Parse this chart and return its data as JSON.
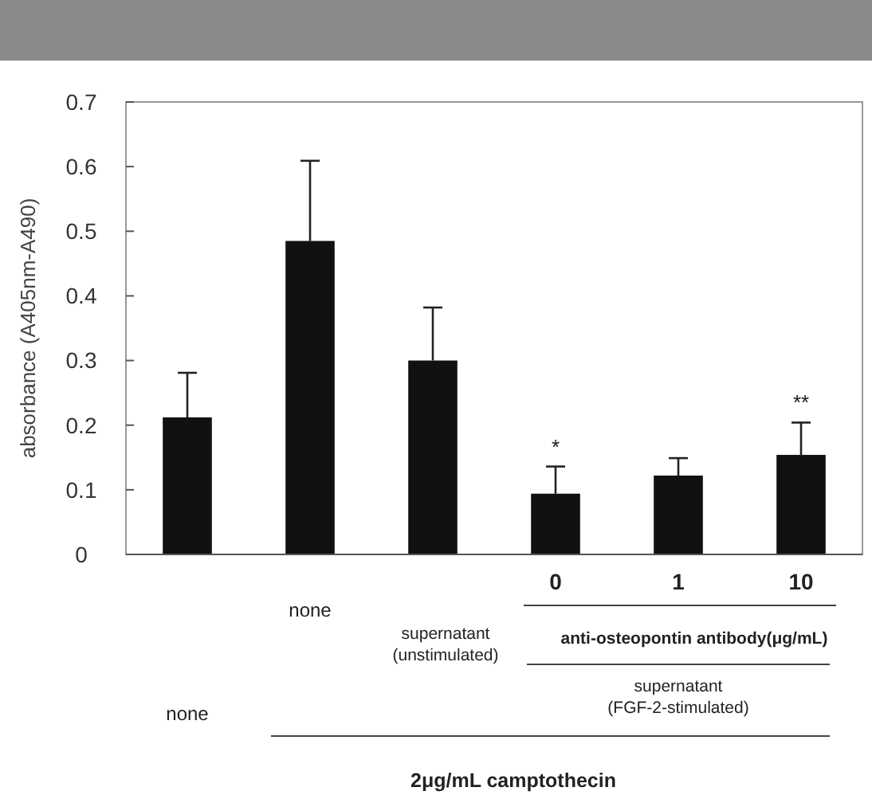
{
  "chart_data": {
    "type": "bar",
    "ylabel": "absorbance (A405nm-A490)",
    "categories": [
      null,
      null,
      null,
      "0",
      "1",
      "10"
    ],
    "values": [
      0.212,
      0.485,
      0.3,
      0.094,
      0.122,
      0.154
    ],
    "errors": [
      0.069,
      0.124,
      0.082,
      0.042,
      0.027,
      0.05
    ],
    "color": "#111111",
    "ylim": [
      0,
      0.7
    ],
    "yticks": [
      0,
      0.1,
      0.2,
      0.3,
      0.4,
      0.5,
      0.6,
      0.7
    ],
    "annotations": [
      "*",
      "**",
      "none",
      "supernatant (unstimulated)",
      "anti-osteopontin antibody(μg/mL)",
      "supernatant (FGF-2-stimulated)",
      "none",
      "2μg/mL camptothecin"
    ]
  }
}
